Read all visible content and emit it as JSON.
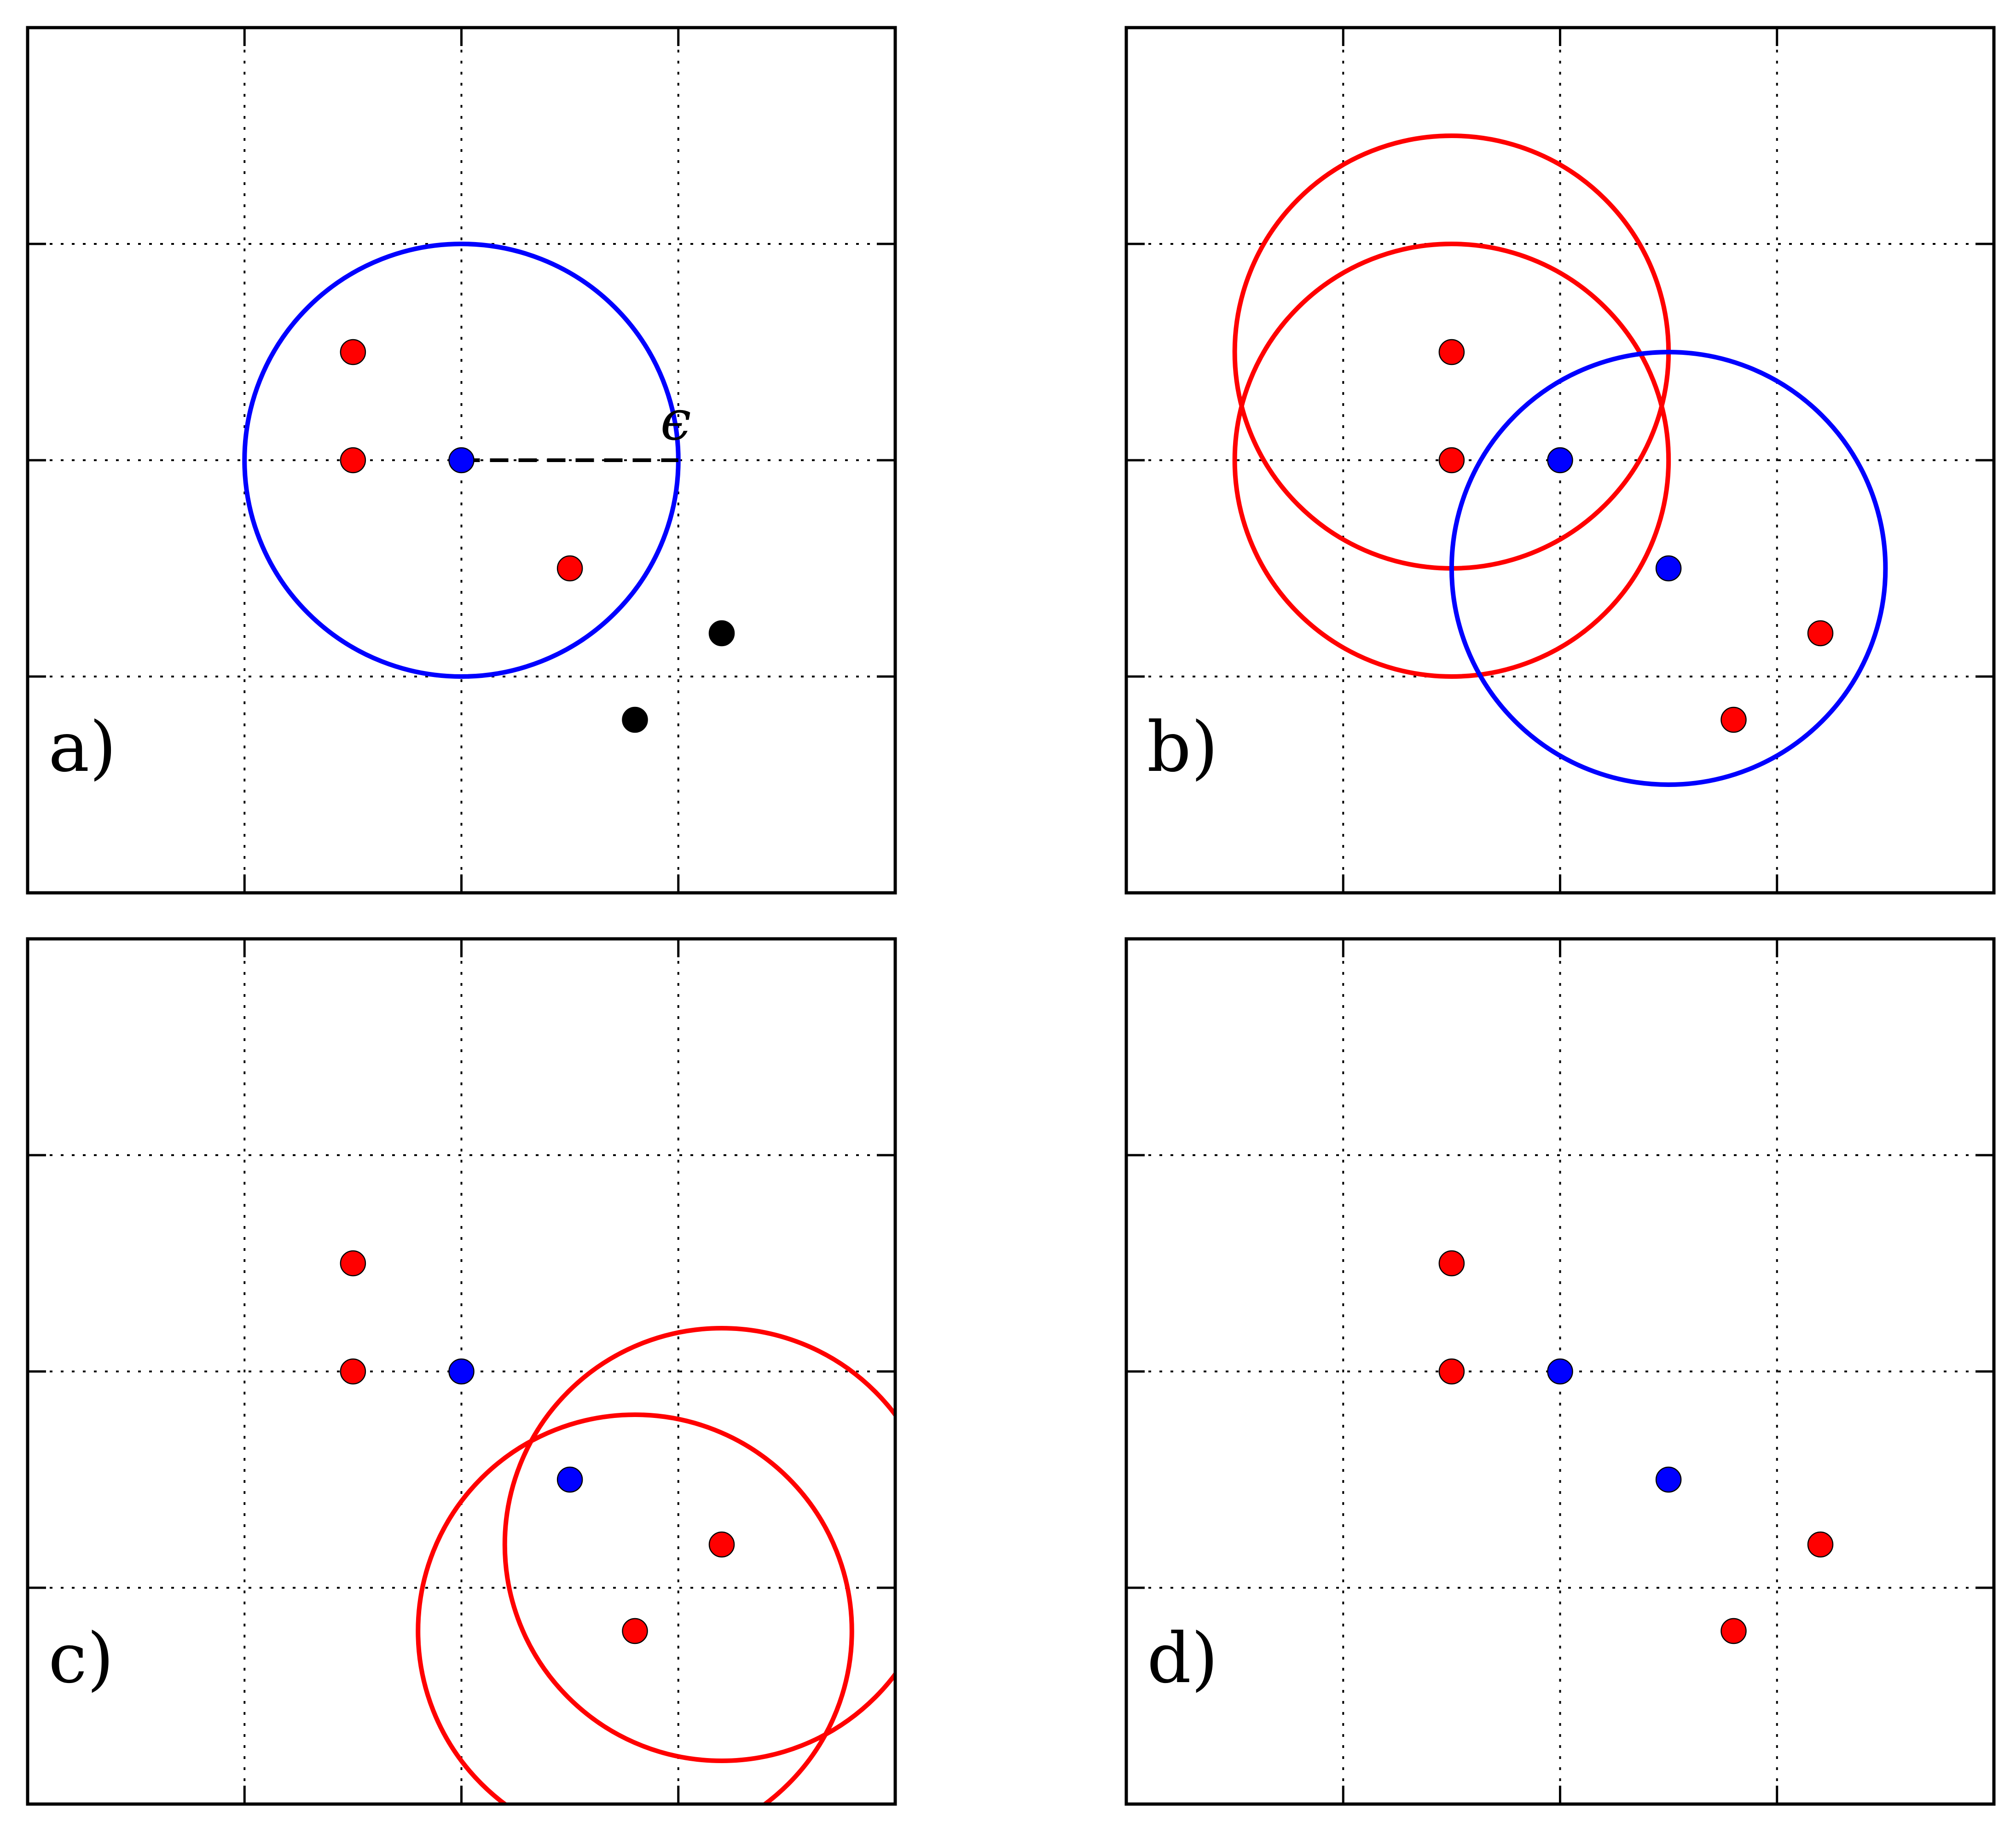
{
  "figure": {
    "epsilon_label": "ϵ",
    "colors": {
      "core": "#0000ff",
      "border": "#ff0000",
      "unvisited": "#000000",
      "core_circle": "#0000ff",
      "border_circle": "#ff0000"
    },
    "axis": {
      "xlim": [
        0,
        4
      ],
      "ylim": [
        0,
        4
      ],
      "grid": true,
      "ticks": [
        1,
        2,
        3
      ]
    },
    "panels": [
      {
        "label": "a)",
        "points": [
          {
            "x": 1.5,
            "y": 2.5,
            "kind": "border"
          },
          {
            "x": 1.5,
            "y": 2.0,
            "kind": "border"
          },
          {
            "x": 2.0,
            "y": 2.0,
            "kind": "core"
          },
          {
            "x": 2.5,
            "y": 1.5,
            "kind": "border"
          },
          {
            "x": 3.2,
            "y": 1.2,
            "kind": "unvisited"
          },
          {
            "x": 2.8,
            "y": 0.8,
            "kind": "unvisited"
          }
        ],
        "circles": [
          {
            "x": 2.0,
            "y": 2.0,
            "r": 1.0,
            "kind": "core_circle"
          }
        ],
        "radius_marker": {
          "x1": 2.0,
          "y1": 2.0,
          "x2": 3.0,
          "y2": 2.0
        }
      },
      {
        "label": "b)",
        "points": [
          {
            "x": 1.5,
            "y": 2.5,
            "kind": "border"
          },
          {
            "x": 1.5,
            "y": 2.0,
            "kind": "border"
          },
          {
            "x": 2.0,
            "y": 2.0,
            "kind": "core"
          },
          {
            "x": 2.5,
            "y": 1.5,
            "kind": "core"
          },
          {
            "x": 3.2,
            "y": 1.2,
            "kind": "border"
          },
          {
            "x": 2.8,
            "y": 0.8,
            "kind": "border"
          }
        ],
        "circles": [
          {
            "x": 1.5,
            "y": 2.5,
            "r": 1.0,
            "kind": "border_circle"
          },
          {
            "x": 1.5,
            "y": 2.0,
            "r": 1.0,
            "kind": "border_circle"
          },
          {
            "x": 2.5,
            "y": 1.5,
            "r": 1.0,
            "kind": "core_circle"
          }
        ]
      },
      {
        "label": "c)",
        "points": [
          {
            "x": 1.5,
            "y": 2.5,
            "kind": "border"
          },
          {
            "x": 1.5,
            "y": 2.0,
            "kind": "border"
          },
          {
            "x": 2.0,
            "y": 2.0,
            "kind": "core"
          },
          {
            "x": 2.5,
            "y": 1.5,
            "kind": "core"
          },
          {
            "x": 3.2,
            "y": 1.2,
            "kind": "border"
          },
          {
            "x": 2.8,
            "y": 0.8,
            "kind": "border"
          }
        ],
        "circles": [
          {
            "x": 3.2,
            "y": 1.2,
            "r": 1.0,
            "kind": "border_circle"
          },
          {
            "x": 2.8,
            "y": 0.8,
            "r": 1.0,
            "kind": "border_circle"
          }
        ]
      },
      {
        "label": "d)",
        "points": [
          {
            "x": 1.5,
            "y": 2.5,
            "kind": "border"
          },
          {
            "x": 1.5,
            "y": 2.0,
            "kind": "border"
          },
          {
            "x": 2.0,
            "y": 2.0,
            "kind": "core"
          },
          {
            "x": 2.5,
            "y": 1.5,
            "kind": "core"
          },
          {
            "x": 3.2,
            "y": 1.2,
            "kind": "border"
          },
          {
            "x": 2.8,
            "y": 0.8,
            "kind": "border"
          }
        ],
        "circles": []
      }
    ]
  }
}
